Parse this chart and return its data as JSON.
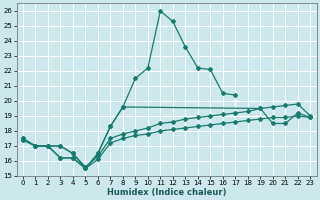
{
  "xlabel": "Humidex (Indice chaleur)",
  "xlim": [
    -0.5,
    23.5
  ],
  "ylim": [
    15,
    26.5
  ],
  "yticks": [
    15,
    16,
    17,
    18,
    19,
    20,
    21,
    22,
    23,
    24,
    25,
    26
  ],
  "xticks": [
    0,
    1,
    2,
    3,
    4,
    5,
    6,
    7,
    8,
    9,
    10,
    11,
    12,
    13,
    14,
    15,
    16,
    17,
    18,
    19,
    20,
    21,
    22,
    23
  ],
  "bg_color": "#cce8ec",
  "grid_color": "#ffffff",
  "line_color": "#1a7a6e",
  "lines": [
    {
      "x": [
        0,
        1,
        2,
        3,
        4,
        5,
        6,
        7,
        8,
        9,
        10,
        11,
        12,
        13,
        14,
        15,
        16,
        17
      ],
      "y": [
        17.5,
        17.0,
        17.0,
        16.2,
        16.2,
        15.5,
        16.5,
        18.3,
        19.6,
        21.5,
        22.2,
        26.0,
        25.3,
        23.6,
        22.2,
        22.1,
        20.5,
        20.4
      ]
    },
    {
      "x": [
        0,
        1,
        2,
        3,
        4,
        5,
        6,
        7,
        8,
        19,
        20,
        21,
        22,
        23
      ],
      "y": [
        17.5,
        17.0,
        17.0,
        16.2,
        16.2,
        15.5,
        16.5,
        18.3,
        19.6,
        19.5,
        18.5,
        18.5,
        19.2,
        18.9
      ]
    },
    {
      "x": [
        0,
        1,
        2,
        3,
        4,
        5,
        6,
        7,
        8,
        9,
        10,
        11,
        12,
        13,
        14,
        15,
        16,
        17,
        18,
        19,
        20,
        21,
        22,
        23
      ],
      "y": [
        17.4,
        17.0,
        17.0,
        17.0,
        16.5,
        15.6,
        16.3,
        17.5,
        17.8,
        18.0,
        18.2,
        18.5,
        18.6,
        18.8,
        18.9,
        19.0,
        19.1,
        19.2,
        19.3,
        19.5,
        19.6,
        19.7,
        19.8,
        19.0
      ]
    },
    {
      "x": [
        0,
        1,
        2,
        3,
        4,
        5,
        6,
        7,
        8,
        9,
        10,
        11,
        12,
        13,
        14,
        15,
        16,
        17,
        18,
        19,
        20,
        21,
        22,
        23
      ],
      "y": [
        17.4,
        17.0,
        17.0,
        17.0,
        16.5,
        15.5,
        16.1,
        17.2,
        17.5,
        17.7,
        17.8,
        18.0,
        18.1,
        18.2,
        18.3,
        18.4,
        18.5,
        18.6,
        18.7,
        18.8,
        18.9,
        18.9,
        19.0,
        18.9
      ]
    }
  ]
}
